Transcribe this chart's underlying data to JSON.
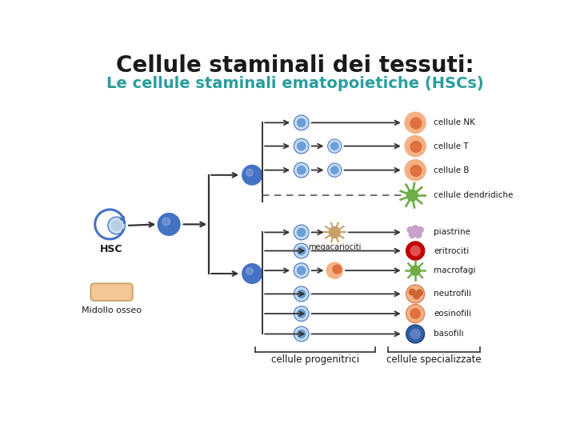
{
  "title1": "Cellule staminali dei tessuti:",
  "title1_color": "#1a1a1a",
  "title2": "Le cellule staminali ematopoietiche (HSCs)",
  "title2_color": "#2a9d9d",
  "bg_color": "#ffffff",
  "labels": {
    "HSC": "HSC",
    "bone": "Midollo osseo",
    "NK": "cellule NK",
    "T": "cellule T",
    "B": "cellule B",
    "dendridiche": "cellule dendridiche",
    "mega": "megacariociti",
    "piastrine": "piastrine",
    "eritrociti": "eritrociti",
    "macrofagi": "macrofagi",
    "neutrofili": "neutrofili",
    "eosinofili": "eosinofili",
    "basofili": "basofili",
    "progenitrici": "cellule progenitrici",
    "specializzate": "cellule specializzate"
  },
  "blue_dark": "#4472c4",
  "blue_mid": "#6a9fd8",
  "blue_light": "#b8cce4",
  "blue_ring": "#c8ddf0",
  "orange_cell": "#f4b183",
  "orange_dark": "#e07040",
  "green_cell": "#70ad47",
  "brown_cell": "#c9a06a",
  "purple_cell": "#c8a0c8",
  "red_cell": "#c00000",
  "red_light": "#ff6060",
  "navy_cell": "#2e5fa3",
  "arrow_color": "#333333",
  "dashed_color": "#555555",
  "bone_fill": "#f4c896",
  "bone_edge": "#c8a060"
}
